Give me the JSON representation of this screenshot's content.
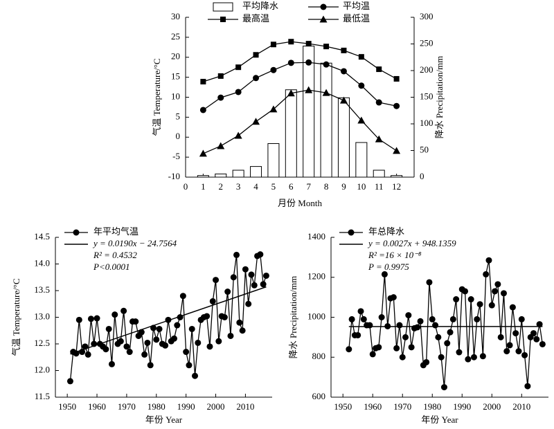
{
  "chart_data": [
    {
      "type": "combo",
      "x": [
        1,
        2,
        3,
        4,
        5,
        6,
        7,
        8,
        9,
        10,
        11,
        12
      ],
      "xlim": [
        0,
        13
      ],
      "xticks": [
        0,
        1,
        2,
        3,
        4,
        5,
        6,
        7,
        8,
        9,
        10,
        11,
        12
      ],
      "ylim": [
        -10,
        30
      ],
      "yticks": [
        -10,
        -5,
        0,
        5,
        10,
        15,
        20,
        25,
        30
      ],
      "y2lim": [
        0,
        300
      ],
      "y2ticks": [
        0,
        50,
        100,
        150,
        200,
        250,
        300
      ],
      "xlabel": "月份 Month",
      "ylabel": "气温 Temperature/°C",
      "y2label": "降水 Precipitation/mm",
      "series": [
        {
          "name": "平均降水",
          "kind": "bar",
          "axis": "y2",
          "color": "#000000",
          "values": [
            3,
            6,
            13,
            20,
            63,
            164,
            246,
            214,
            149,
            65,
            13,
            3
          ]
        },
        {
          "name": "平均温",
          "kind": "line",
          "marker": "circle",
          "color": "#000000",
          "values": [
            6.8,
            9.9,
            11.3,
            14.8,
            16.8,
            18.6,
            18.7,
            18.2,
            16.5,
            12.9,
            8.7,
            7.8
          ]
        },
        {
          "name": "最高温",
          "kind": "line",
          "marker": "square",
          "color": "#000000",
          "values": [
            13.9,
            15.3,
            17.5,
            20.6,
            23.2,
            23.9,
            23.4,
            22.7,
            21.7,
            20.1,
            17.0,
            14.6
          ]
        },
        {
          "name": "最低温",
          "kind": "line",
          "marker": "triangle",
          "color": "#000000",
          "values": [
            -4.1,
            -2.2,
            0.4,
            3.9,
            7.0,
            11.0,
            11.8,
            11.1,
            9.2,
            4.2,
            -0.5,
            -3.4
          ]
        }
      ]
    },
    {
      "type": "line",
      "x": [
        1951,
        1952,
        1953,
        1954,
        1955,
        1956,
        1957,
        1958,
        1959,
        1960,
        1961,
        1962,
        1963,
        1964,
        1965,
        1966,
        1967,
        1968,
        1969,
        1970,
        1971,
        1972,
        1973,
        1974,
        1975,
        1976,
        1977,
        1978,
        1979,
        1980,
        1981,
        1982,
        1983,
        1984,
        1985,
        1986,
        1987,
        1988,
        1989,
        1990,
        1991,
        1992,
        1993,
        1994,
        1995,
        1996,
        1997,
        1998,
        1999,
        2000,
        2001,
        2002,
        2003,
        2004,
        2005,
        2006,
        2007,
        2008,
        2009,
        2010,
        2011,
        2012,
        2013,
        2014,
        2015,
        2016,
        2017
      ],
      "xlim": [
        1946,
        2019
      ],
      "xticks": [
        1950,
        1960,
        1970,
        1980,
        1990,
        2000,
        2010
      ],
      "ylim": [
        11.5,
        14.5
      ],
      "yticks": [
        11.5,
        {
          "value": 12,
          "label": "12.0"
        },
        12.5,
        {
          "value": 13,
          "label": "13.0"
        },
        13.5,
        {
          "value": 14,
          "label": "14.0"
        },
        14.5
      ],
      "xlabel": "年份 Year",
      "ylabel": "气温 Temperature/°C",
      "series": [
        {
          "name": "年平均气温",
          "kind": "line",
          "marker": "circle",
          "color": "#000000",
          "values": [
            11.8,
            12.35,
            12.32,
            12.95,
            12.35,
            12.45,
            12.3,
            12.97,
            12.5,
            12.98,
            12.5,
            12.45,
            12.4,
            12.78,
            12.12,
            13.05,
            12.5,
            12.55,
            13.12,
            12.45,
            12.35,
            12.92,
            12.92,
            12.65,
            12.72,
            12.3,
            12.52,
            12.1,
            12.8,
            12.58,
            12.78,
            12.5,
            12.47,
            12.95,
            12.55,
            12.6,
            12.85,
            13.0,
            13.4,
            12.35,
            12.1,
            12.78,
            11.9,
            12.52,
            12.95,
            13.0,
            13.02,
            12.45,
            13.3,
            13.7,
            12.55,
            13.02,
            13.0,
            13.48,
            12.65,
            13.75,
            14.17,
            12.9,
            12.75,
            13.9,
            13.25,
            13.8,
            13.6,
            14.15,
            14.18,
            13.62,
            13.78
          ]
        }
      ],
      "trend": {
        "name": "y = 0.0190x − 24.7564",
        "x": [
          1951,
          2017
        ],
        "values": [
          12.31,
          13.57
        ]
      },
      "annotations": [
        "R² = 0.4532",
        "P<0.0001"
      ]
    },
    {
      "type": "line",
      "x": [
        1952,
        1953,
        1954,
        1955,
        1956,
        1957,
        1958,
        1959,
        1960,
        1961,
        1962,
        1963,
        1964,
        1965,
        1966,
        1967,
        1968,
        1969,
        1970,
        1971,
        1972,
        1973,
        1974,
        1975,
        1976,
        1977,
        1978,
        1979,
        1980,
        1981,
        1982,
        1983,
        1984,
        1985,
        1986,
        1987,
        1988,
        1989,
        1990,
        1991,
        1992,
        1993,
        1994,
        1995,
        1996,
        1997,
        1998,
        1999,
        2000,
        2001,
        2002,
        2003,
        2004,
        2005,
        2006,
        2007,
        2008,
        2009,
        2010,
        2011,
        2012,
        2013,
        2014,
        2015,
        2016,
        2017
      ],
      "xlim": [
        1946,
        2019
      ],
      "xticks": [
        1950,
        1960,
        1970,
        1980,
        1990,
        2000,
        2010
      ],
      "ylim": [
        600,
        1400
      ],
      "yticks": [
        600,
        800,
        1000,
        1200,
        1400
      ],
      "xlabel": "年份 Year",
      "ylabel": "降水 Precipitation/mm",
      "series": [
        {
          "name": "年总降水",
          "kind": "line",
          "marker": "circle",
          "color": "#000000",
          "values": [
            840,
            990,
            910,
            910,
            1030,
            990,
            960,
            960,
            815,
            845,
            850,
            1000,
            1215,
            955,
            1095,
            1100,
            845,
            960,
            800,
            900,
            1010,
            850,
            945,
            950,
            980,
            760,
            775,
            1175,
            990,
            960,
            900,
            800,
            650,
            870,
            925,
            990,
            1090,
            825,
            1140,
            1130,
            790,
            1090,
            800,
            990,
            1065,
            805,
            1215,
            1285,
            1060,
            1130,
            1165,
            900,
            1120,
            830,
            860,
            1050,
            920,
            830,
            990,
            810,
            655,
            900,
            920,
            890,
            965,
            865
          ]
        }
      ],
      "trend": {
        "name": "y = 0.0027x + 948.1359",
        "x": [
          1952,
          2017
        ],
        "values": [
          953.4,
          953.6
        ]
      },
      "annotations": [
        "R² =16 × 10⁻⁸",
        "P = 0.9975"
      ]
    }
  ]
}
